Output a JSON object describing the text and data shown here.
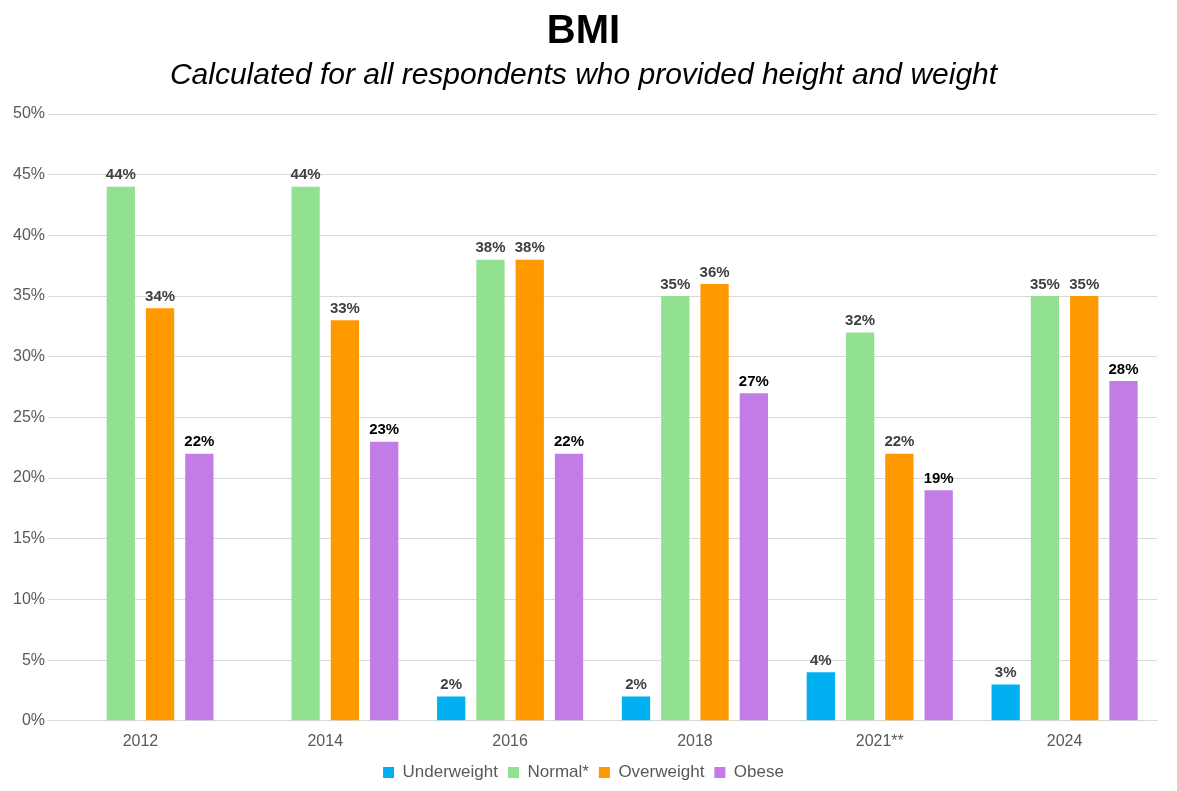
{
  "chart_data": {
    "type": "bar",
    "title": "BMI",
    "subtitle": "Calculated for all respondents who provided height and weight",
    "categories": [
      "2012",
      "2014",
      "2016",
      "2018",
      "2021**",
      "2024"
    ],
    "series": [
      {
        "name": "Underweight",
        "color": "#00b0f0",
        "values": [
          null,
          null,
          2,
          2,
          4,
          3
        ],
        "value_labels": [
          null,
          null,
          "2%",
          "2%",
          "4%",
          "3%"
        ]
      },
      {
        "name": "Normal*",
        "color": "#92e092",
        "values": [
          44,
          44,
          38,
          35,
          32,
          35
        ],
        "value_labels": [
          "44%",
          "44%",
          "38%",
          "35%",
          "32%",
          "35%"
        ]
      },
      {
        "name": "Overweight",
        "color": "#ff9900",
        "values": [
          34,
          33,
          38,
          36,
          22,
          35
        ],
        "value_labels": [
          "34%",
          "33%",
          "38%",
          "36%",
          "22%",
          "35%"
        ]
      },
      {
        "name": "Obese",
        "color": "#c27ce6",
        "values": [
          22,
          23,
          22,
          27,
          19,
          28
        ],
        "value_labels": [
          "22%",
          "23%",
          "22%",
          "27%",
          "19%",
          "28%"
        ]
      }
    ],
    "ylim": [
      0,
      50
    ],
    "yticks": [
      {
        "value": 0,
        "label": "0%"
      },
      {
        "value": 5,
        "label": "5%"
      },
      {
        "value": 10,
        "label": "10%"
      },
      {
        "value": 15,
        "label": "15%"
      },
      {
        "value": 20,
        "label": "20%"
      },
      {
        "value": 25,
        "label": "25%"
      },
      {
        "value": 30,
        "label": "30%"
      },
      {
        "value": 35,
        "label": "35%"
      },
      {
        "value": 40,
        "label": "40%"
      },
      {
        "value": 45,
        "label": "45%"
      },
      {
        "value": 50,
        "label": "50%"
      }
    ],
    "grid": "y",
    "legend": "bottom"
  }
}
